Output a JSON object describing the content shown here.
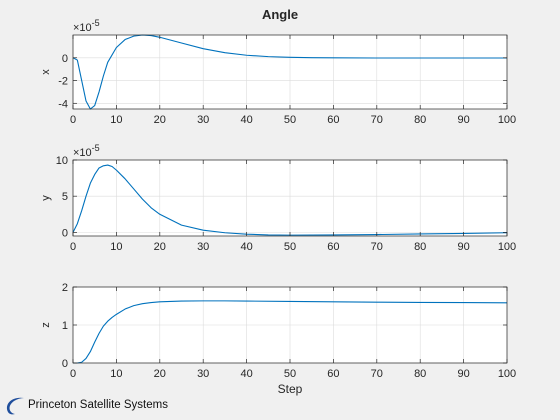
{
  "title": "Angle",
  "logo_text": "Princeton Satellite Systems",
  "colors": {
    "line": "#0072BD",
    "axes_bg": "#ffffff",
    "figure_bg": "#f0f0f0",
    "grid": "#dcdcdc",
    "logo": "#1f4e9c"
  },
  "chart_data": [
    {
      "type": "line",
      "ylabel": "x",
      "exponent": "-5",
      "xlim": [
        0,
        100
      ],
      "ylim": [
        -4.5,
        2
      ],
      "xticks": [
        0,
        10,
        20,
        30,
        40,
        50,
        60,
        70,
        80,
        90,
        100
      ],
      "yticks": [
        -4,
        -2,
        0
      ],
      "grid": true,
      "series": [
        {
          "x": [
            0,
            1,
            2,
            3,
            4,
            5,
            6,
            7,
            8,
            10,
            12,
            14,
            16,
            18,
            20,
            25,
            30,
            35,
            40,
            45,
            50,
            55,
            60,
            70,
            80,
            90,
            100
          ],
          "y": [
            0,
            -0.2,
            -2.0,
            -3.8,
            -4.5,
            -4.2,
            -3.0,
            -1.6,
            -0.4,
            0.9,
            1.6,
            1.9,
            2.0,
            1.95,
            1.8,
            1.3,
            0.8,
            0.45,
            0.22,
            0.1,
            0.04,
            0.01,
            0.0,
            -0.02,
            -0.02,
            -0.02,
            -0.02
          ]
        }
      ]
    },
    {
      "type": "line",
      "ylabel": "y",
      "exponent": "-5",
      "xlim": [
        0,
        100
      ],
      "ylim": [
        -0.5,
        10
      ],
      "xticks": [
        0,
        10,
        20,
        30,
        40,
        50,
        60,
        70,
        80,
        90,
        100
      ],
      "yticks": [
        0,
        5,
        10
      ],
      "grid": true,
      "series": [
        {
          "x": [
            0,
            1,
            2,
            3,
            4,
            5,
            6,
            7,
            8,
            9,
            10,
            12,
            14,
            16,
            18,
            20,
            25,
            30,
            35,
            40,
            45,
            50,
            60,
            70,
            80,
            90,
            100
          ],
          "y": [
            0,
            1.2,
            3.0,
            5.0,
            6.8,
            8.0,
            8.9,
            9.2,
            9.3,
            9.1,
            8.6,
            7.4,
            6.0,
            4.6,
            3.4,
            2.5,
            1.0,
            0.3,
            -0.05,
            -0.25,
            -0.35,
            -0.38,
            -0.35,
            -0.3,
            -0.22,
            -0.15,
            -0.05
          ]
        }
      ]
    },
    {
      "type": "line",
      "ylabel": "z",
      "xlabel": "Step",
      "xlim": [
        0,
        100
      ],
      "ylim": [
        0,
        2
      ],
      "xticks": [
        0,
        10,
        20,
        30,
        40,
        50,
        60,
        70,
        80,
        90,
        100
      ],
      "yticks": [
        0,
        1,
        2
      ],
      "grid": true,
      "series": [
        {
          "x": [
            0,
            1,
            2,
            3,
            4,
            5,
            6,
            7,
            8,
            9,
            10,
            12,
            14,
            16,
            18,
            20,
            25,
            30,
            35,
            40,
            50,
            60,
            70,
            80,
            90,
            100
          ],
          "y": [
            0,
            0.0,
            0.02,
            0.12,
            0.3,
            0.55,
            0.78,
            0.97,
            1.1,
            1.2,
            1.28,
            1.42,
            1.51,
            1.56,
            1.59,
            1.61,
            1.63,
            1.635,
            1.635,
            1.63,
            1.62,
            1.61,
            1.6,
            1.595,
            1.59,
            1.585
          ]
        }
      ]
    }
  ]
}
